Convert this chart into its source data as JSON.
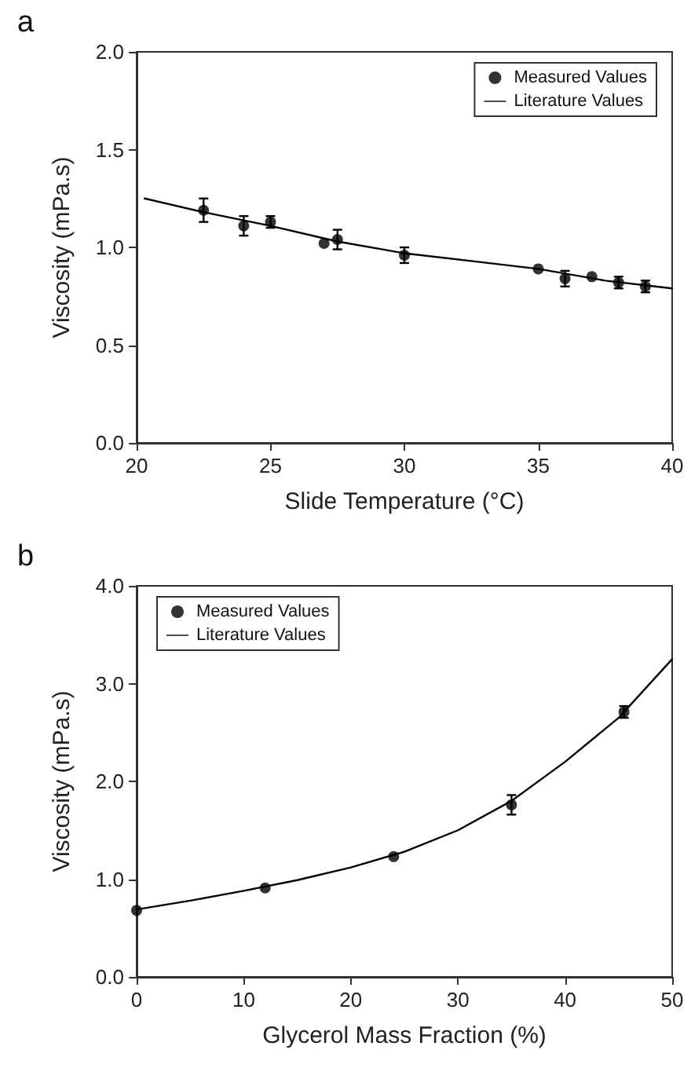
{
  "chart_data": [
    {
      "type": "scatter",
      "title": "a",
      "xlabel": "Slide Temperature (°C)",
      "ylabel": "Viscosity (mPa.s)",
      "xlim": [
        20,
        40
      ],
      "xticks": [
        20,
        25,
        30,
        35,
        40
      ],
      "ylim": [
        0,
        2
      ],
      "yticks": [
        {
          "value": 0,
          "label": "0.0"
        },
        {
          "value": 0.5,
          "label": "0.5"
        },
        {
          "value": 1,
          "label": "1.0"
        },
        {
          "value": 1.5,
          "label": "1.5"
        },
        {
          "value": 2,
          "label": "2.0"
        }
      ],
      "legend": "top right",
      "grid": false,
      "series": [
        {
          "name": "Measured Values",
          "marker": "circle",
          "color": "#000000",
          "x": [
            22.5,
            24,
            25,
            27,
            27.5,
            30,
            35,
            36,
            37,
            38,
            39
          ],
          "values": [
            1.19,
            1.11,
            1.13,
            1.02,
            1.04,
            0.96,
            0.89,
            0.84,
            0.85,
            0.82,
            0.8
          ],
          "errors": [
            0.06,
            0.05,
            0.03,
            null,
            0.05,
            0.04,
            null,
            0.04,
            null,
            0.03,
            0.03
          ]
        },
        {
          "name": "Literature Values",
          "type": "line",
          "marker": "none",
          "line_style": "solid",
          "color": "#000000",
          "x": [
            20.3,
            22.5,
            25,
            27.5,
            30,
            32.5,
            35,
            37.5,
            40
          ],
          "values": [
            1.25,
            1.18,
            1.11,
            1.03,
            0.97,
            0.93,
            0.89,
            0.83,
            0.79
          ]
        }
      ]
    },
    {
      "type": "scatter",
      "title": "b",
      "xlabel": "Glycerol Mass Fraction (%)",
      "ylabel": "Viscosity (mPa.s)",
      "xlim": [
        0,
        50
      ],
      "xticks": [
        0,
        10,
        20,
        30,
        40,
        50
      ],
      "ylim": [
        0,
        4
      ],
      "yticks": [
        {
          "value": 0,
          "label": "0.0"
        },
        {
          "value": 1,
          "label": "1.0"
        },
        {
          "value": 2,
          "label": "2.0"
        },
        {
          "value": 3,
          "label": "3.0"
        },
        {
          "value": 4,
          "label": "4.0"
        }
      ],
      "legend": "top left",
      "grid": false,
      "series": [
        {
          "name": "Measured Values",
          "marker": "circle",
          "color": "#000000",
          "x": [
            0,
            12,
            24,
            35,
            45.5
          ],
          "values": [
            0.68,
            0.91,
            1.23,
            1.76,
            2.71
          ],
          "errors": [
            null,
            null,
            null,
            0.1,
            0.06
          ]
        },
        {
          "name": "Literature Values",
          "type": "line",
          "marker": "none",
          "line_style": "solid",
          "color": "#000000",
          "x": [
            0,
            5,
            10,
            15,
            20,
            25,
            30,
            35,
            40,
            45,
            50
          ],
          "values": [
            0.69,
            0.78,
            0.88,
            0.99,
            1.12,
            1.28,
            1.5,
            1.8,
            2.2,
            2.65,
            3.25
          ]
        }
      ]
    }
  ]
}
